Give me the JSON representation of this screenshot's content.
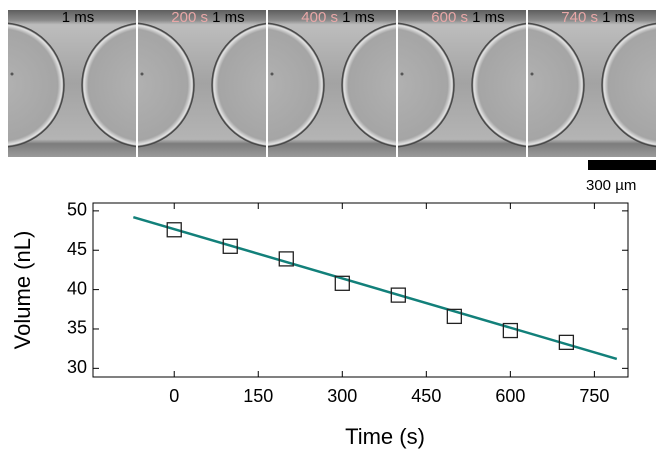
{
  "panels": [
    {
      "exposure": "1 ms"
    },
    {
      "time": "200 s",
      "exposure": "1 ms"
    },
    {
      "time": "400 s",
      "exposure": "1 ms"
    },
    {
      "time": "600 s",
      "exposure": "1 ms"
    },
    {
      "time": "740 s",
      "exposure": "1 ms"
    }
  ],
  "scale_bar": "300 µm",
  "chart_data": {
    "type": "scatter",
    "x_label": "Time (s)",
    "y_label": "Volume (nL)",
    "x": [
      0,
      100,
      200,
      300,
      400,
      500,
      600,
      700
    ],
    "values": [
      47.6,
      45.5,
      43.9,
      40.8,
      39.3,
      36.6,
      34.8,
      33.3
    ],
    "color": "#222222",
    "fit": {
      "x": [
        -73,
        790
      ],
      "values": [
        49.2,
        31.2
      ],
      "color": "#12807a"
    },
    "xlim": [
      -145,
      810
    ],
    "ylim": [
      28.9,
      51
    ],
    "xticks": [
      0,
      150,
      300,
      450,
      600,
      750
    ],
    "yticks": [
      30,
      35,
      40,
      45,
      50
    ]
  }
}
